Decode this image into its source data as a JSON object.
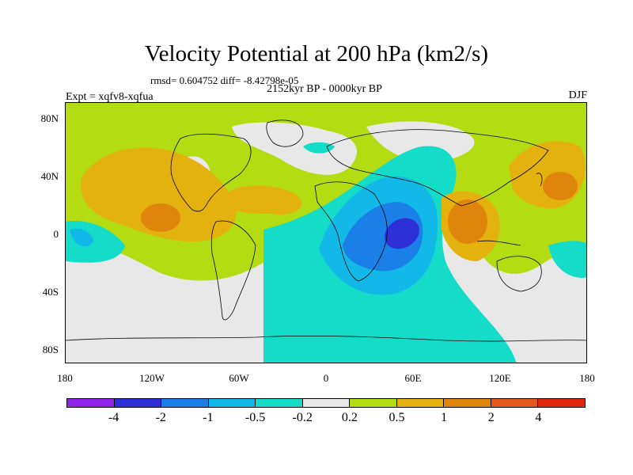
{
  "title": "Velocity Potential at 200 hPa (km2/s)",
  "stats": "rmsd= 0.604752 diff= -8.42798e-05",
  "period": "2152kyr BP - 0000kyr BP",
  "expt": "Expt = xqfv8-xqfua",
  "season": "DJF",
  "y_axis": [
    "80N",
    "40N",
    "0",
    "40S",
    "80S"
  ],
  "x_axis": [
    "180",
    "120W",
    "60W",
    "0",
    "60E",
    "120E",
    "180"
  ],
  "colorbar": {
    "labels": [
      "-4",
      "-2",
      "-1",
      "-0.5",
      "-0.2",
      "0.2",
      "0.5",
      "1",
      "2",
      "4"
    ],
    "colors": [
      "#8f24e8",
      "#2f2fd8",
      "#1a7fe6",
      "#12b9e8",
      "#15dcc9",
      "#e8e8e8",
      "#b3dc12",
      "#e4b20f",
      "#e0850c",
      "#e4591c",
      "#e02810"
    ]
  }
}
